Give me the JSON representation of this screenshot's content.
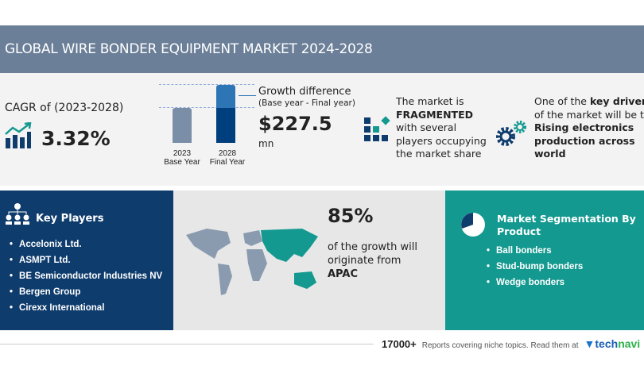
{
  "header": {
    "title": "GLOBAL WIRE BONDER EQUIPMENT MARKET 2024-2028"
  },
  "cagr": {
    "label": "CAGR of (2023-2028)",
    "value": "3.32%"
  },
  "growth": {
    "base_year": "2023",
    "base_label": "Base Year",
    "final_year": "2028",
    "final_label": "Final Year",
    "title": "Growth difference",
    "subtitle": "(Base year - Final year)",
    "value": "$227.5",
    "unit": "mn"
  },
  "market": {
    "line1": "The market is",
    "bold": "FRAGMENTED",
    "line3": "with several",
    "line4": "players occupying",
    "line5": "the market share"
  },
  "drivers": {
    "pre": "One of the ",
    "bold1": "key drivers",
    "line2": "of the market will be the",
    "b2": "Rising electronics",
    "b3": "production across",
    "b4": "world"
  },
  "key_players": {
    "title": "Key Players",
    "items": [
      "Accelonix Ltd.",
      "ASMPT Ltd.",
      "BE Semiconductor Industries NV",
      "Bergen Group",
      "Cirexx International"
    ]
  },
  "region": {
    "percent": "85%",
    "line1": "of the growth will",
    "line2": "originate from",
    "region": "APAC"
  },
  "segmentation": {
    "title1": "Market Segmentation By",
    "title2": "Product",
    "items": [
      "Ball bonders",
      "Stud-bump bonders",
      "Wedge bonders"
    ]
  },
  "footer": {
    "count": "17000+",
    "text": "Reports covering niche topics. Read them at",
    "brand1": "tech",
    "brand2": "navi"
  },
  "colors": {
    "header": "#6b7f98",
    "navy": "#0e3c6d",
    "teal": "#13998f",
    "bar_light": "#2e75b6"
  }
}
